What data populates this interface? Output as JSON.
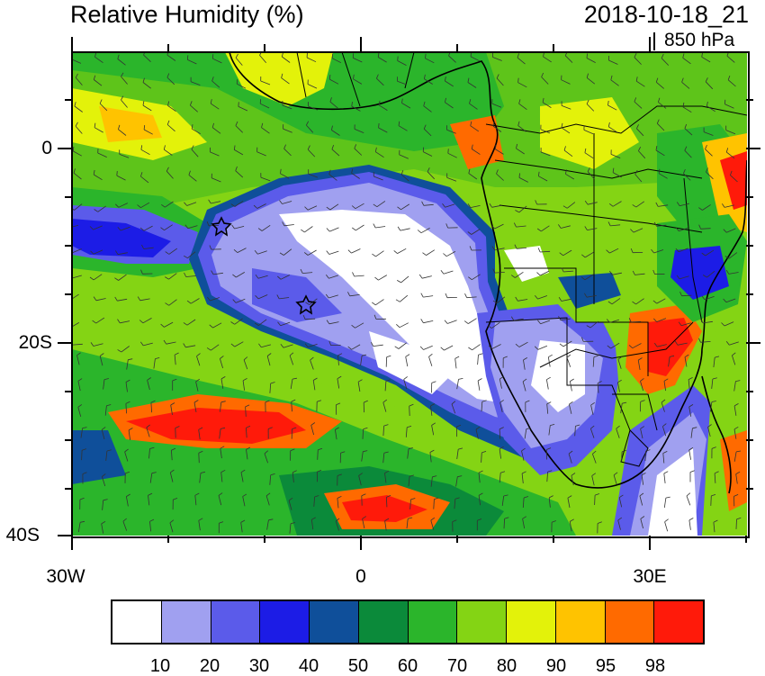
{
  "header": {
    "title": "Relative Humidity (%)",
    "datetime": "2018-10-18_21",
    "level": "850 hPa"
  },
  "map": {
    "y_tick_labels": [
      "0",
      "20S",
      "40S"
    ],
    "x_tick_labels": [
      "30W",
      "0",
      "30E"
    ]
  },
  "legend": {
    "colors": [
      "#ffffff",
      "#a0a0f0",
      "#5b5bea",
      "#1c1ce6",
      "#0f4f9a",
      "#0b8a3a",
      "#2bb52b",
      "#84d414",
      "#e3f20a",
      "#ffc300",
      "#ff6a00",
      "#ff1a0a"
    ],
    "labels": [
      "10",
      "20",
      "30",
      "40",
      "50",
      "60",
      "70",
      "80",
      "90",
      "95",
      "98"
    ]
  }
}
